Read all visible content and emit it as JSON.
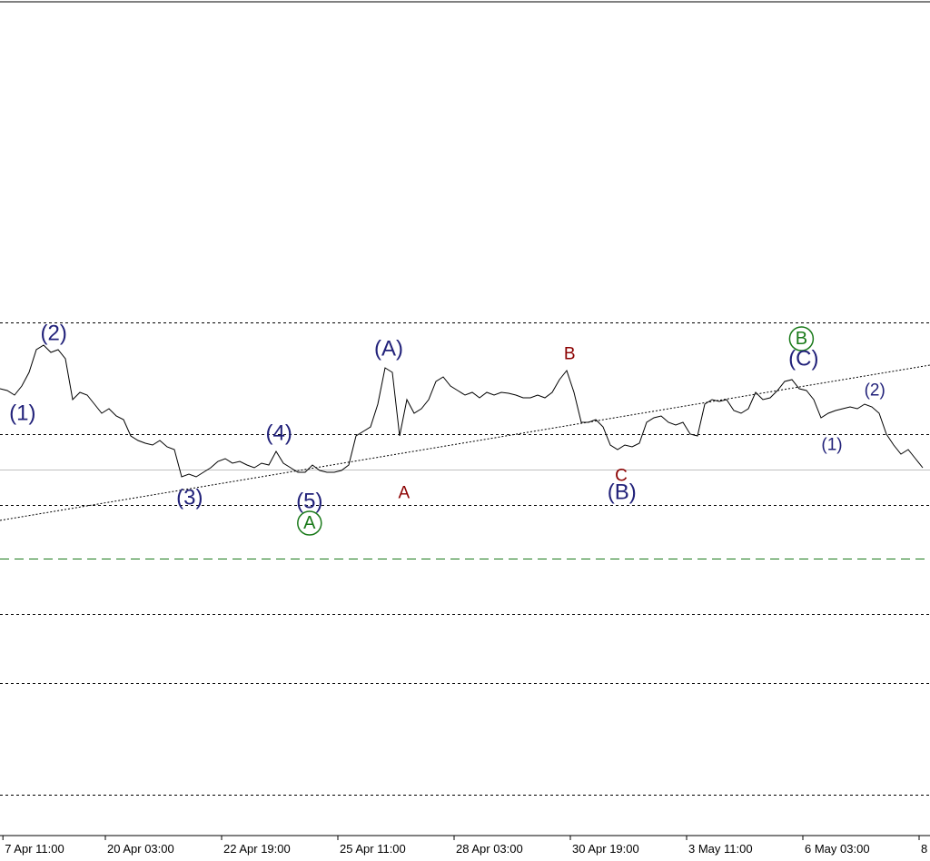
{
  "chart_data": {
    "type": "line",
    "color": "#000000",
    "xlim": [
      0,
      128
    ],
    "ylim": [
      0,
      92
    ],
    "xticks": [
      {
        "value": 0.4,
        "label": "7 Apr 11:00"
      },
      {
        "value": 14.5,
        "label": "20 Apr 03:00"
      },
      {
        "value": 30.5,
        "label": "22 Apr 19:00"
      },
      {
        "value": 46.5,
        "label": "25 Apr 11:00"
      },
      {
        "value": 62.5,
        "label": "28 Apr 03:00"
      },
      {
        "value": 78.5,
        "label": "30 Apr 19:00"
      },
      {
        "value": 94.5,
        "label": "3 May 11:00"
      },
      {
        "value": 110.5,
        "label": "6 May 03:00"
      },
      {
        "value": 126.5,
        "label": "8"
      }
    ],
    "values": [
      49.2,
      49.0,
      48.5,
      49.5,
      51.0,
      53.5,
      54.0,
      53.2,
      53.5,
      52.5,
      48.0,
      48.8,
      48.5,
      47.5,
      46.5,
      47.0,
      46.2,
      45.8,
      44.0,
      43.5,
      43.2,
      43.0,
      43.5,
      42.8,
      42.5,
      39.5,
      39.8,
      39.5,
      40.0,
      40.5,
      41.2,
      41.5,
      41.0,
      41.2,
      40.8,
      40.5,
      41.0,
      40.8,
      42.3,
      41.0,
      40.5,
      40.0,
      40.0,
      40.8,
      40.2,
      40.0,
      40.0,
      40.2,
      40.8,
      44.0,
      44.5,
      45.0,
      47.5,
      51.5,
      51.0,
      44.0,
      48.0,
      46.5,
      47.0,
      48.0,
      50.0,
      50.5,
      49.5,
      49.0,
      48.5,
      48.8,
      48.2,
      48.8,
      48.5,
      48.8,
      48.7,
      48.5,
      48.2,
      48.2,
      48.5,
      48.2,
      48.8,
      50.2,
      51.2,
      48.8,
      45.5,
      45.5,
      45.8,
      45.0,
      43.0,
      42.5,
      43.0,
      42.8,
      43.2,
      45.5,
      46.0,
      46.2,
      45.5,
      45.2,
      45.5,
      44.2,
      44.0,
      47.5,
      48.0,
      47.8,
      48.0,
      46.8,
      46.5,
      47.0,
      48.8,
      48.0,
      48.2,
      49.0,
      50.0,
      50.2,
      49.2,
      49.0,
      48.0,
      46.0,
      46.5,
      46.8,
      47.0,
      47.2,
      47.0,
      47.5,
      47.2,
      46.5,
      44.2,
      43.0,
      42.0,
      42.5,
      41.5,
      40.5
    ],
    "levels": [
      {
        "value": 56.5,
        "style": "dotted",
        "color": "#000000"
      },
      {
        "value": 44.2,
        "style": "dotted",
        "color": "#000000"
      },
      {
        "value": 40.3,
        "style": "solid",
        "color": "#c0c0c0"
      },
      {
        "value": 36.4,
        "style": "dotted",
        "color": "#000000"
      },
      {
        "value": 30.5,
        "style": "dashed",
        "color": "#1a7a1a"
      },
      {
        "value": 24.4,
        "style": "dotted",
        "color": "#000000"
      },
      {
        "value": 16.8,
        "style": "dotted",
        "color": "#000000"
      },
      {
        "value": 4.5,
        "style": "dotted",
        "color": "#000000"
      }
    ],
    "trendline": {
      "x": [
        0,
        128
      ],
      "y": [
        34.7,
        51.8
      ]
    },
    "annotations": [
      {
        "text": "(1)",
        "x": 3.1,
        "y": 46.5,
        "color": "#22227a",
        "style": "large"
      },
      {
        "text": "(2)",
        "x": 7.4,
        "y": 55.3,
        "color": "#22227a",
        "style": "large"
      },
      {
        "text": "(3)",
        "x": 26.1,
        "y": 37.2,
        "color": "#22227a",
        "style": "large"
      },
      {
        "text": "(4)",
        "x": 38.4,
        "y": 44.3,
        "color": "#22227a",
        "style": "large"
      },
      {
        "text": "(5)",
        "x": 42.6,
        "y": 36.8,
        "color": "#22227a",
        "style": "large"
      },
      {
        "text": "A",
        "x": 42.6,
        "y": 34.4,
        "color": "#1a7a1a",
        "style": "circled"
      },
      {
        "text": "(A)",
        "x": 53.5,
        "y": 53.6,
        "color": "#22227a",
        "style": "large"
      },
      {
        "text": "A",
        "x": 55.6,
        "y": 37.7,
        "color": "#8b0000",
        "style": "small"
      },
      {
        "text": "B",
        "x": 78.4,
        "y": 53.0,
        "color": "#8b0000",
        "style": "small"
      },
      {
        "text": "C",
        "x": 85.5,
        "y": 39.6,
        "color": "#8b0000",
        "style": "small"
      },
      {
        "text": "(B)",
        "x": 85.6,
        "y": 37.8,
        "color": "#22227a",
        "style": "large"
      },
      {
        "text": "B",
        "x": 110.3,
        "y": 54.7,
        "color": "#1a7a1a",
        "style": "circled"
      },
      {
        "text": "(C)",
        "x": 110.6,
        "y": 52.5,
        "color": "#22227a",
        "style": "large"
      },
      {
        "text": "(1)",
        "x": 114.5,
        "y": 43.0,
        "color": "#22227a",
        "style": "small"
      },
      {
        "text": "(2)",
        "x": 120.4,
        "y": 49.0,
        "color": "#22227a",
        "style": "small"
      }
    ]
  }
}
